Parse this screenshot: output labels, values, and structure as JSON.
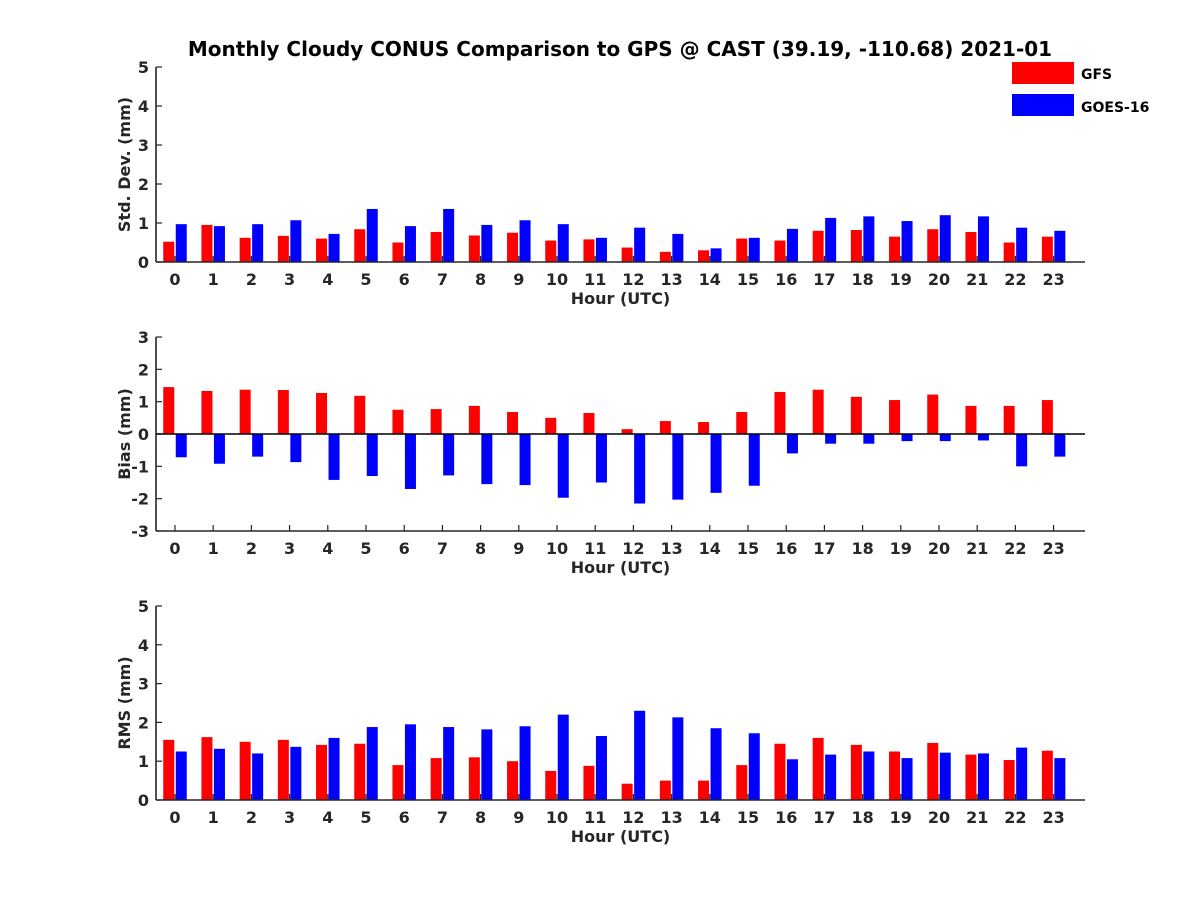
{
  "title": "Monthly Cloudy CONUS Comparison to GPS @ CAST (39.19, -110.68) 2021-01",
  "colors": {
    "GFS": "#ff0000",
    "GOES-16": "#0000ff"
  },
  "legend": {
    "placement": "top-right",
    "entries": [
      {
        "name": "GFS",
        "color": "#ff0000"
      },
      {
        "name": "GOES-16",
        "color": "#0000ff"
      }
    ]
  },
  "chart_data": [
    {
      "type": "bar",
      "ylabel": "Std. Dev. (mm)",
      "xlabel": "Hour (UTC)",
      "ylim": [
        0,
        5
      ],
      "yticks": [
        0,
        1,
        2,
        3,
        4,
        5
      ],
      "categories": [
        "0",
        "1",
        "2",
        "3",
        "4",
        "5",
        "6",
        "7",
        "8",
        "9",
        "10",
        "11",
        "12",
        "13",
        "14",
        "15",
        "16",
        "17",
        "18",
        "19",
        "20",
        "21",
        "22",
        "23"
      ],
      "series": [
        {
          "name": "GFS",
          "values": [
            0.52,
            0.95,
            0.62,
            0.67,
            0.6,
            0.84,
            0.5,
            0.77,
            0.68,
            0.75,
            0.55,
            0.58,
            0.37,
            0.26,
            0.3,
            0.6,
            0.55,
            0.8,
            0.82,
            0.65,
            0.84,
            0.77,
            0.5,
            0.65
          ]
        },
        {
          "name": "GOES-16",
          "values": [
            0.97,
            0.92,
            0.97,
            1.07,
            0.72,
            1.36,
            0.92,
            1.36,
            0.95,
            1.07,
            0.97,
            0.62,
            0.88,
            0.72,
            0.35,
            0.62,
            0.85,
            1.13,
            1.17,
            1.05,
            1.2,
            1.17,
            0.88,
            0.8
          ]
        }
      ]
    },
    {
      "type": "bar",
      "ylabel": "Bias (mm)",
      "xlabel": "Hour (UTC)",
      "ylim": [
        -3,
        3
      ],
      "yticks": [
        -3,
        -2,
        -1,
        0,
        1,
        2,
        3
      ],
      "categories": [
        "0",
        "1",
        "2",
        "3",
        "4",
        "5",
        "6",
        "7",
        "8",
        "9",
        "10",
        "11",
        "12",
        "13",
        "14",
        "15",
        "16",
        "17",
        "18",
        "19",
        "20",
        "21",
        "22",
        "23"
      ],
      "series": [
        {
          "name": "GFS",
          "values": [
            1.45,
            1.33,
            1.37,
            1.36,
            1.27,
            1.18,
            0.75,
            0.77,
            0.87,
            0.68,
            0.5,
            0.65,
            0.15,
            0.4,
            0.37,
            0.68,
            1.3,
            1.37,
            1.15,
            1.05,
            1.22,
            0.87,
            0.87,
            1.05
          ]
        },
        {
          "name": "GOES-16",
          "values": [
            -0.72,
            -0.92,
            -0.7,
            -0.87,
            -1.42,
            -1.3,
            -1.7,
            -1.28,
            -1.55,
            -1.58,
            -1.97,
            -1.5,
            -2.15,
            -2.03,
            -1.82,
            -1.6,
            -0.6,
            -0.3,
            -0.3,
            -0.22,
            -0.22,
            -0.2,
            -1.0,
            -0.7
          ]
        }
      ]
    },
    {
      "type": "bar",
      "ylabel": "RMS (mm)",
      "xlabel": "Hour (UTC)",
      "ylim": [
        0,
        5
      ],
      "yticks": [
        0,
        1,
        2,
        3,
        4,
        5
      ],
      "categories": [
        "0",
        "1",
        "2",
        "3",
        "4",
        "5",
        "6",
        "7",
        "8",
        "9",
        "10",
        "11",
        "12",
        "13",
        "14",
        "15",
        "16",
        "17",
        "18",
        "19",
        "20",
        "21",
        "22",
        "23"
      ],
      "series": [
        {
          "name": "GFS",
          "values": [
            1.55,
            1.62,
            1.5,
            1.55,
            1.42,
            1.45,
            0.9,
            1.08,
            1.1,
            1.0,
            0.75,
            0.88,
            0.42,
            0.5,
            0.5,
            0.9,
            1.45,
            1.6,
            1.42,
            1.25,
            1.47,
            1.17,
            1.03,
            1.27
          ]
        },
        {
          "name": "GOES-16",
          "values": [
            1.25,
            1.32,
            1.2,
            1.37,
            1.6,
            1.88,
            1.95,
            1.88,
            1.82,
            1.9,
            2.2,
            1.65,
            2.3,
            2.13,
            1.85,
            1.72,
            1.05,
            1.17,
            1.25,
            1.08,
            1.22,
            1.2,
            1.35,
            1.08
          ]
        }
      ]
    }
  ]
}
